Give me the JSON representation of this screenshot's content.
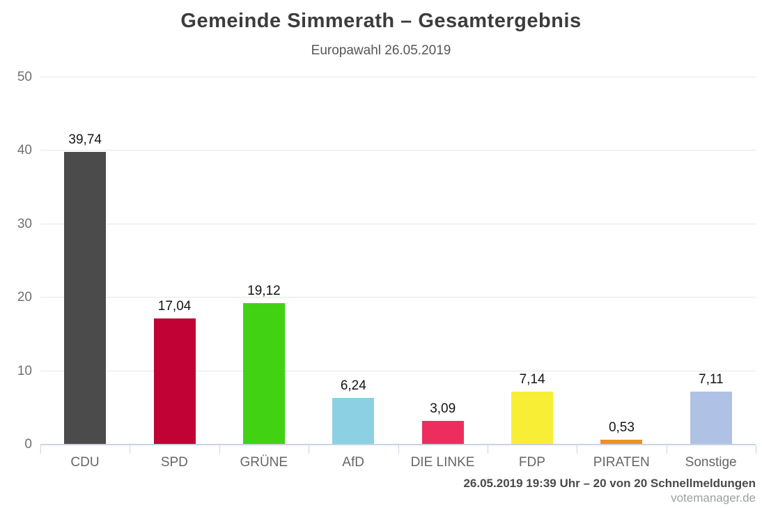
{
  "header": {
    "title": "Gemeinde Simmerath – Gesamtergebnis",
    "subtitle": "Europawahl 26.05.2019"
  },
  "chart_data": {
    "type": "bar",
    "title": "Gemeinde Simmerath – Gesamtergebnis",
    "subtitle": "Europawahl 26.05.2019",
    "categories": [
      "CDU",
      "SPD",
      "GRÜNE",
      "AfD",
      "DIE LINKE",
      "FDP",
      "PIRATEN",
      "Sonstige"
    ],
    "values": [
      39.74,
      17.04,
      19.12,
      6.24,
      3.09,
      7.14,
      0.53,
      7.11
    ],
    "value_labels": [
      "39,74",
      "17,04",
      "19,12",
      "6,24",
      "3,09",
      "7,14",
      "0,53",
      "7,11"
    ],
    "bar_colors": [
      "#4b4b4b",
      "#c00234",
      "#42d214",
      "#8bd0e3",
      "#ee2d5f",
      "#f8ee36",
      "#ec9127",
      "#afc2e6"
    ],
    "xlabel": "",
    "ylabel": "",
    "ylim": [
      0,
      50
    ],
    "yticks": [
      0,
      10,
      20,
      30,
      40,
      50
    ],
    "grid": true,
    "legend": false
  },
  "footer": {
    "status": "26.05.2019 19:39 Uhr – 20 von 20 Schnellmeldungen",
    "brand": "votemanager.de"
  },
  "colors": {
    "background": "#ffffff",
    "gridline": "#e7e7e7",
    "axis_line": "#c8d3e2",
    "axis_text": "#707070",
    "category_text": "#666666",
    "value_text": "#141414",
    "title_text": "#3c3c3c"
  }
}
